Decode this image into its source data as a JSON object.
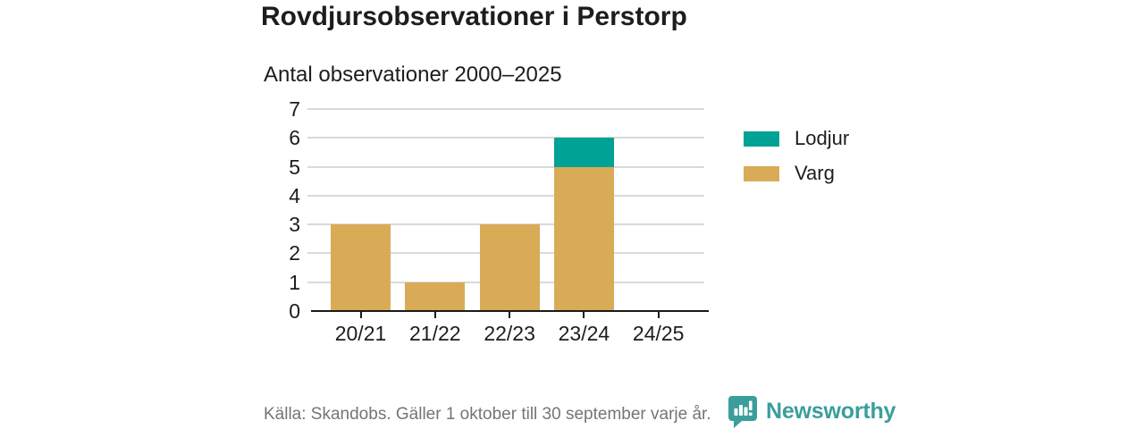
{
  "header": {
    "title": "Rovdjursobservationer i Perstorp",
    "subtitle": "Antal observationer 2000–2025"
  },
  "chart_data": {
    "type": "bar",
    "stacked": true,
    "stack_order": "first series at bottom",
    "categories": [
      "20/21",
      "21/22",
      "22/23",
      "23/24",
      "24/25"
    ],
    "series": [
      {
        "name": "Varg",
        "color": "#d9ab57",
        "values": [
          3,
          1,
          3,
          5,
          0
        ]
      },
      {
        "name": "Lodjur",
        "color": "#00a295",
        "values": [
          0,
          0,
          0,
          1,
          0
        ]
      }
    ],
    "totals": [
      3,
      1,
      3,
      6,
      0
    ],
    "title": "Rovdjursobservationer i Perstorp",
    "subtitle": "Antal observationer 2000–2025",
    "xlabel": "",
    "ylabel": "",
    "ylim": [
      0,
      7
    ],
    "yticks": [
      0,
      1,
      2,
      3,
      4,
      5,
      6,
      7
    ],
    "grid": true,
    "legend_position": "right"
  },
  "legend": {
    "items": [
      {
        "label": "Lodjur",
        "color": "#00a295"
      },
      {
        "label": "Varg",
        "color": "#d9ab57"
      }
    ]
  },
  "footer": {
    "source": "Källa: Skandobs. Gäller 1 oktober till 30 september varje år.",
    "brand_name": "Newsworthy"
  },
  "colors": {
    "axis": "#1a1a1a",
    "grid": "#d9d9d9",
    "text": "#1d1d1b",
    "muted_text": "#757575",
    "brand": "#3b9e9b",
    "lodjur": "#00a295",
    "varg": "#d9ab57"
  },
  "icons": {
    "brand_logo": "newsworthy-speech-bubble-bar-chart-icon"
  }
}
